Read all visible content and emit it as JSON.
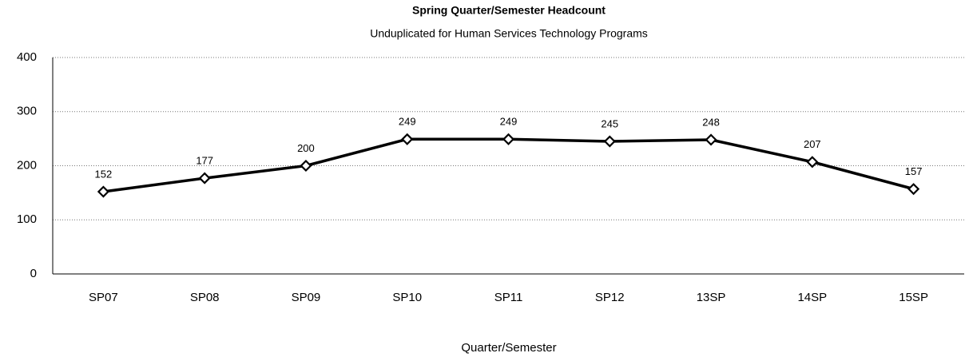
{
  "chart_data": {
    "type": "line",
    "title": "Spring Quarter/Semester Headcount",
    "subtitle": "Unduplicated for Human Services Technology Programs",
    "x_label": "Quarter/Semester",
    "categories": [
      "SP07",
      "SP08",
      "SP09",
      "SP10",
      "SP11",
      "SP12",
      "13SP",
      "14SP",
      "15SP"
    ],
    "values": [
      152,
      177,
      200,
      249,
      249,
      245,
      248,
      207,
      157
    ],
    "color": "#000000",
    "ylim": [
      0,
      400
    ],
    "yticks": [
      0,
      100,
      200,
      300,
      400
    ],
    "grid": true
  }
}
